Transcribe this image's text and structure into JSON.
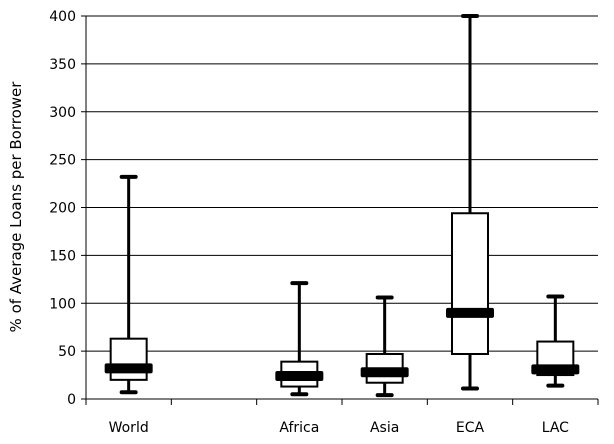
{
  "chart_data": {
    "type": "boxplot",
    "title": "",
    "xlabel": "",
    "ylabel": "% of Average Loans per Borrower",
    "ylim": [
      0,
      400
    ],
    "yticks": [
      0,
      50,
      100,
      150,
      200,
      250,
      300,
      350,
      400
    ],
    "grid": "horizontal",
    "categories": [
      "World",
      "",
      "Africa",
      "Asia",
      "ECA",
      "LAC"
    ],
    "series": [
      {
        "category": "World",
        "min": 7,
        "q1": 20,
        "median": 32,
        "q3": 63,
        "max": 232
      },
      {
        "category": "",
        "min": null,
        "q1": null,
        "median": null,
        "q3": null,
        "max": null
      },
      {
        "category": "Africa",
        "min": 5,
        "q1": 13,
        "median": 24,
        "q3": 39,
        "max": 121
      },
      {
        "category": "Asia",
        "min": 4,
        "q1": 17,
        "median": 28,
        "q3": 47,
        "max": 106
      },
      {
        "category": "ECA",
        "min": 11,
        "q1": 47,
        "median": 90,
        "q3": 194,
        "max": 400
      },
      {
        "category": "LAC",
        "min": 14,
        "q1": 25,
        "median": 31,
        "q3": 60,
        "max": 107
      }
    ],
    "colors": {
      "box_fill": "#ffffff",
      "stroke": "#000000",
      "grid": "#000000"
    }
  }
}
